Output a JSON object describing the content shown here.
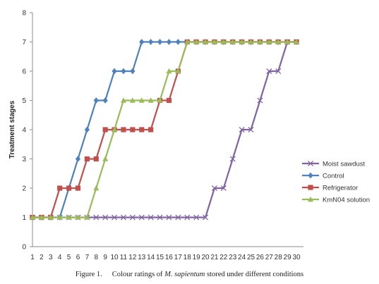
{
  "chart_data": {
    "type": "line",
    "ylabel": "Treatment stages",
    "xlabel": "",
    "ylim": [
      0,
      8
    ],
    "yticks": [
      0,
      1,
      2,
      3,
      4,
      5,
      6,
      7,
      8
    ],
    "x": [
      1,
      2,
      3,
      4,
      5,
      6,
      7,
      8,
      9,
      10,
      11,
      12,
      13,
      14,
      15,
      16,
      17,
      18,
      19,
      20,
      21,
      22,
      23,
      24,
      25,
      26,
      27,
      28,
      29,
      30
    ],
    "legend_position": "right",
    "grid": false,
    "series": [
      {
        "name": "Moist sawdust",
        "color": "#8064a2",
        "marker": "cross",
        "values": [
          1,
          1,
          1,
          1,
          1,
          1,
          1,
          1,
          1,
          1,
          1,
          1,
          1,
          1,
          1,
          1,
          1,
          1,
          1,
          1,
          2,
          2,
          3,
          4,
          4,
          5,
          6,
          6,
          7,
          7
        ]
      },
      {
        "name": "Control",
        "color": "#4f81bd",
        "marker": "diamond",
        "values": [
          1,
          1,
          1,
          1,
          2,
          3,
          4,
          5,
          5,
          6,
          6,
          6,
          7,
          7,
          7,
          7,
          7,
          7,
          7,
          7,
          7,
          7,
          7,
          7,
          7,
          7,
          7,
          7,
          7,
          7
        ]
      },
      {
        "name": "Refrigerator",
        "color": "#c0504d",
        "marker": "square",
        "values": [
          1,
          1,
          1,
          2,
          2,
          2,
          3,
          3,
          4,
          4,
          4,
          4,
          4,
          4,
          5,
          5,
          6,
          7,
          7,
          7,
          7,
          7,
          7,
          7,
          7,
          7,
          7,
          7,
          7,
          7
        ]
      },
      {
        "name": "KmN04 solution",
        "color": "#9bbb59",
        "marker": "triangle",
        "values": [
          1,
          1,
          1,
          1,
          1,
          1,
          1,
          2,
          3,
          4,
          5,
          5,
          5,
          5,
          5,
          6,
          6,
          7,
          7,
          7,
          7,
          7,
          7,
          7,
          7,
          7,
          7,
          7,
          7,
          7
        ]
      }
    ]
  },
  "caption": {
    "figure_label": "Figure 1.",
    "text_before": "Colour ratings of ",
    "species": "M. sapientum",
    "text_after": " stored under different conditions"
  }
}
